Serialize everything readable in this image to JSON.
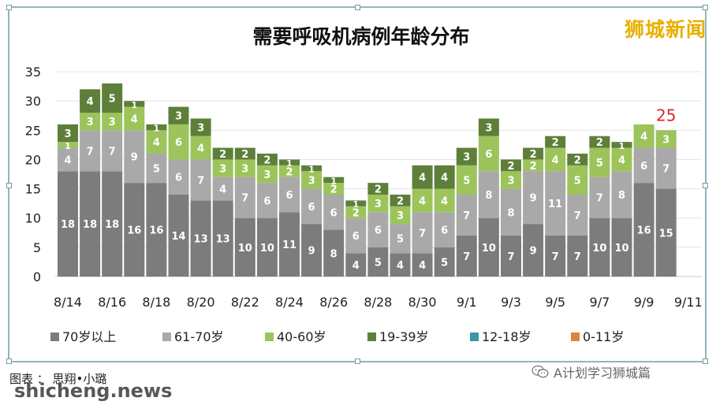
{
  "brand": "狮城新闻",
  "credit": "图表 ： 思翔•小璐",
  "watermark": "shicheng.news",
  "wechat_label": "A计划学习狮城篇",
  "colors": {
    "70岁以上": "#7c7c7c",
    "61-70岁": "#a9a9a9",
    "40-60岁": "#9cc45b",
    "19-39岁": "#5e7f3a",
    "12-18岁": "#3a96a8",
    "0-11岁": "#e0823a",
    "annotation": "#d9292b"
  },
  "chart_data": {
    "type": "bar",
    "stacked": true,
    "title": "需要呼吸机病例年龄分布",
    "categories": [
      "8/14",
      "8/15",
      "8/16",
      "8/17",
      "8/18",
      "8/19",
      "8/20",
      "8/21",
      "8/22",
      "8/23",
      "8/24",
      "8/25",
      "8/26",
      "8/27",
      "8/28",
      "8/29",
      "8/30",
      "8/31",
      "9/1",
      "9/2",
      "9/3",
      "9/4",
      "9/5",
      "9/6",
      "9/7",
      "9/8",
      "9/9",
      "9/10"
    ],
    "x_tick_labels": [
      "8/14",
      "8/16",
      "8/18",
      "8/20",
      "8/22",
      "8/24",
      "8/26",
      "8/28",
      "8/30",
      "9/1",
      "9/3",
      "9/5",
      "9/7",
      "9/9",
      "9/11"
    ],
    "ylim": [
      0,
      35
    ],
    "yticks": [
      0,
      5,
      10,
      15,
      20,
      25,
      30,
      35
    ],
    "grid": true,
    "legend_position": "bottom",
    "series": [
      {
        "name": "70岁以上",
        "values": [
          18,
          18,
          18,
          16,
          16,
          14,
          13,
          13,
          10,
          10,
          11,
          9,
          8,
          4,
          5,
          4,
          4,
          5,
          7,
          10,
          7,
          9,
          7,
          7,
          10,
          10,
          16,
          15
        ]
      },
      {
        "name": "61-70岁",
        "values": [
          4,
          7,
          7,
          9,
          5,
          6,
          7,
          4,
          7,
          6,
          6,
          6,
          6,
          6,
          6,
          5,
          7,
          6,
          7,
          8,
          8,
          9,
          11,
          7,
          7,
          8,
          6,
          7
        ]
      },
      {
        "name": "40-60岁",
        "values": [
          1,
          3,
          3,
          4,
          4,
          6,
          4,
          3,
          3,
          3,
          2,
          3,
          2,
          2,
          3,
          3,
          4,
          4,
          5,
          6,
          3,
          2,
          4,
          5,
          5,
          4,
          4,
          3
        ]
      },
      {
        "name": "19-39岁",
        "values": [
          3,
          4,
          5,
          1,
          1,
          3,
          3,
          2,
          2,
          2,
          1,
          1,
          1,
          1,
          2,
          2,
          4,
          4,
          3,
          3,
          2,
          2,
          2,
          2,
          2,
          1,
          0,
          0
        ]
      },
      {
        "name": "12-18岁",
        "values": [
          0,
          0,
          0,
          0,
          0,
          0,
          0,
          0,
          0,
          0,
          0,
          0,
          0,
          0,
          0,
          0,
          0,
          0,
          0,
          0,
          0,
          0,
          0,
          0,
          0,
          0,
          0,
          0
        ]
      },
      {
        "name": "0-11岁",
        "values": [
          0,
          0,
          0,
          0,
          0,
          0,
          0,
          0,
          0,
          0,
          0,
          0,
          0,
          0,
          0,
          0,
          0,
          0,
          0,
          0,
          0,
          0,
          0,
          0,
          0,
          0,
          0,
          0
        ]
      }
    ],
    "annotations": [
      {
        "category": "9/10",
        "text": "25"
      }
    ]
  }
}
